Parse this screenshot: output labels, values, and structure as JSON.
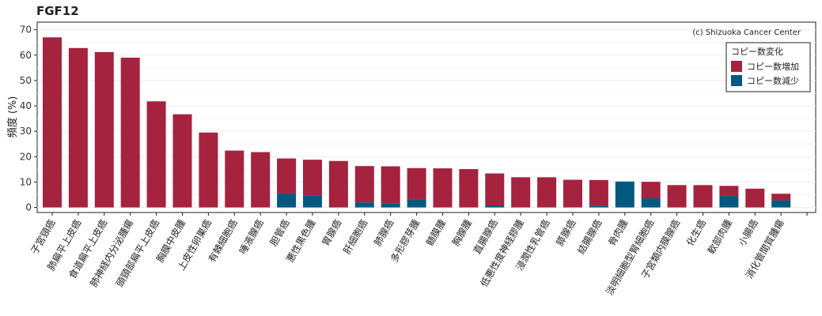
{
  "chart_data": {
    "type": "bar",
    "stacked": true,
    "title": "FGF12",
    "ylabel": "頻度 (%)",
    "xlabel": "",
    "ylim": [
      -2,
      73
    ],
    "yticks": [
      0,
      10,
      20,
      30,
      40,
      50,
      60,
      70
    ],
    "grid": true,
    "legend_position": "top-right",
    "legend_title": "コピー数変化",
    "credit": "(c) Shizuoka Cancer Center",
    "categories": [
      "子宮頸癌",
      "肺扁平上皮癌",
      "食道扁平上皮癌",
      "肺神経内分泌腫瘍",
      "頭頸部扁平上皮癌",
      "胸膜中皮腫",
      "上皮性卵巣癌",
      "有棘細胞癌",
      "唾液腺癌",
      "胆管癌",
      "悪性黒色腫",
      "胃腺癌",
      "肝細胞癌",
      "肺腺癌",
      "多形膠芽腫",
      "髄膜腫",
      "胸腺腫",
      "直腸腺癌",
      "低悪性度神経膠腫",
      "浸潤性乳管癌",
      "膵腺癌",
      "結腸腺癌",
      "骨肉腫",
      "淡明細胞型腎細胞癌",
      "子宮類内膜腺癌",
      "化生癌",
      "軟部肉腫",
      "小腸癌",
      "消化管間質腫瘍"
    ],
    "series": [
      {
        "name": "コピー数増加",
        "color": "#A5233E",
        "values": [
          67.0,
          62.8,
          61.2,
          59.0,
          41.8,
          36.7,
          29.5,
          22.4,
          21.8,
          13.8,
          14.0,
          18.3,
          14.3,
          14.7,
          12.5,
          15.4,
          15.1,
          12.6,
          11.9,
          11.9,
          10.9,
          10.1,
          0.0,
          6.5,
          8.8,
          8.8,
          4.0,
          7.4,
          2.6
        ]
      },
      {
        "name": "コピー数減少",
        "color": "#035880",
        "values": [
          0.0,
          0.0,
          0.0,
          0.0,
          0.0,
          0.0,
          0.0,
          0.0,
          0.0,
          5.5,
          4.8,
          0.0,
          2.0,
          1.5,
          3.0,
          0.0,
          0.0,
          0.8,
          0.0,
          0.0,
          0.0,
          0.7,
          10.2,
          3.6,
          0.0,
          0.0,
          4.5,
          0.0,
          2.8
        ]
      }
    ]
  }
}
